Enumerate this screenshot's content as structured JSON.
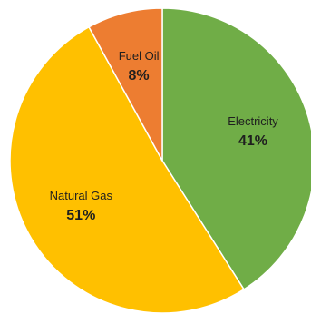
{
  "chart_data": {
    "type": "pie",
    "slices": [
      {
        "label": "Electricity",
        "value": 41,
        "pct_label": "41%",
        "color": "#70ad47"
      },
      {
        "label": "Natural Gas",
        "value": 51,
        "pct_label": "51%",
        "color": "#ffc000"
      },
      {
        "label": "Fuel Oil",
        "value": 8,
        "pct_label": "8%",
        "color": "#ed7d31"
      }
    ],
    "start": "12 o'clock",
    "direction": "clockwise",
    "legend": "none",
    "data_labels": "inside"
  }
}
